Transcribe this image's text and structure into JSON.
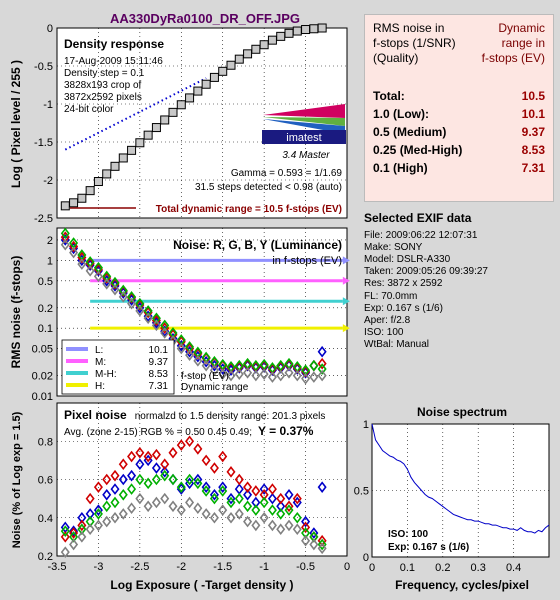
{
  "file_title": "AA330DyRa0100_DR_OFF.JPG",
  "summary": {
    "header_left": [
      "RMS noise in",
      "f-stops (1/SNR)",
      "(Quality)"
    ],
    "header_right": [
      "Dynamic",
      "range in",
      "f-stops (EV)"
    ],
    "rows": [
      {
        "label": "Total:",
        "value": "10.5"
      },
      {
        "label": "1.0   (Low):",
        "value": "10.1"
      },
      {
        "label": "0.5   (Medium)",
        "value": "9.37"
      },
      {
        "label": "0.25 (Med-High)",
        "value": "8.53"
      },
      {
        "label": "0.1   (High)",
        "value": "7.31"
      }
    ]
  },
  "exif": {
    "title": "Selected EXIF data",
    "lines": [
      "File:  2009:06:22 12:07:31",
      "Make:  SONY",
      "Model: DSLR-A330",
      "Taken:  2009:05:26 09:39:27",
      "Res:   3872 x 2592",
      "FL:  70.0mm",
      "Exp:   0.167 s   (1/6)",
      "Aper:  f/2.8",
      "ISO:   100",
      "WtBal: Manual"
    ]
  },
  "logo": {
    "name": "imatest",
    "edition": "3.4  Master"
  },
  "chart_data": [
    {
      "type": "scatter",
      "title": "Density response",
      "info_lines": [
        "17-Aug-2009 15:11:46",
        "Density step = 0.1",
        "3828x193 crop of",
        "3872x2592 pixels",
        "24-bit color"
      ],
      "gamma_text": "Gamma = 0.593 = 1/1.69",
      "steps_text": "31.5 steps detected < 0.98 (auto)",
      "total_text": "Total dynamic range = 10.5 f-stops (EV)",
      "ylabel": "Log ( Pixel level / 255 )",
      "xlim": [
        -3.5,
        0
      ],
      "ylim": [
        -2.5,
        0
      ],
      "yticks": [
        0,
        -0.5,
        -1,
        -1.5,
        -2,
        -2.5
      ],
      "x": [
        -3.4,
        -3.3,
        -3.2,
        -3.1,
        -3.0,
        -2.9,
        -2.8,
        -2.7,
        -2.6,
        -2.5,
        -2.4,
        -2.3,
        -2.2,
        -2.1,
        -2.0,
        -1.9,
        -1.8,
        -1.7,
        -1.6,
        -1.5,
        -1.4,
        -1.3,
        -1.2,
        -1.1,
        -1.0,
        -0.9,
        -0.8,
        -0.7,
        -0.6,
        -0.5,
        -0.4,
        -0.3
      ],
      "y": [
        -2.34,
        -2.3,
        -2.24,
        -2.14,
        -2.02,
        -1.92,
        -1.82,
        -1.71,
        -1.61,
        -1.51,
        -1.41,
        -1.31,
        -1.21,
        -1.11,
        -1.01,
        -0.92,
        -0.83,
        -0.74,
        -0.65,
        -0.57,
        -0.49,
        -0.41,
        -0.34,
        -0.28,
        -0.22,
        -0.16,
        -0.11,
        -0.07,
        -0.04,
        -0.02,
        -0.01,
        0
      ],
      "fit_line": {
        "x": [
          -3.4,
          -1.7
        ],
        "y": [
          -1.6,
          -0.66
        ]
      }
    },
    {
      "type": "scatter",
      "title": "Noise: R, G, B, Y (Luminance)",
      "subtitle": "in f-stops (EV)",
      "ylabel": "RMS noise (f-stops)",
      "yscale": "log",
      "xlim": [
        -3.5,
        0
      ],
      "ylim": [
        0.01,
        3
      ],
      "yticks": [
        2,
        1,
        0.5,
        0.2,
        0.1,
        0.05,
        0.02,
        0.01
      ],
      "ytick_labels": [
        "2",
        "1",
        "0.5",
        "0.2",
        "0.1",
        "0.05",
        "0.02",
        "0.01"
      ],
      "ref_lines": [
        {
          "name": "L:",
          "value": 1.0,
          "dr": "10.1",
          "color": "#9090ff"
        },
        {
          "name": "M:",
          "value": 0.5,
          "dr": "9.37",
          "color": "#ff60ff"
        },
        {
          "name": "M-H:",
          "value": 0.25,
          "dr": "8.53",
          "color": "#40d0d0"
        },
        {
          "name": "H:",
          "value": 0.1,
          "dr": "7.31",
          "color": "#f0f000"
        }
      ],
      "annotations": [
        "f-stop (EV)",
        "Dynamic range"
      ],
      "x": [
        -3.4,
        -3.3,
        -3.2,
        -3.1,
        -3.0,
        -2.9,
        -2.8,
        -2.7,
        -2.6,
        -2.5,
        -2.4,
        -2.3,
        -2.2,
        -2.1,
        -2.0,
        -1.9,
        -1.8,
        -1.7,
        -1.6,
        -1.5,
        -1.4,
        -1.3,
        -1.2,
        -1.1,
        -1.0,
        -0.9,
        -0.8,
        -0.7,
        -0.6,
        -0.5,
        -0.4,
        -0.3
      ],
      "series": [
        {
          "color": "#0000c8",
          "values": [
            2.0,
            1.5,
            1.0,
            0.85,
            0.7,
            0.5,
            0.42,
            0.33,
            0.26,
            0.2,
            0.15,
            0.12,
            0.09,
            0.07,
            0.055,
            0.045,
            0.038,
            0.032,
            0.028,
            0.025,
            0.024,
            0.026,
            0.028,
            0.026,
            0.027,
            0.024,
            0.026,
            0.028,
            0.025,
            0.022,
            0.028,
            0.045
          ]
        },
        {
          "color": "#d00000",
          "values": [
            2.2,
            1.6,
            1.1,
            0.9,
            0.74,
            0.55,
            0.45,
            0.35,
            0.28,
            0.22,
            0.17,
            0.13,
            0.1,
            0.08,
            0.063,
            0.05,
            0.042,
            0.036,
            0.031,
            0.028,
            0.026,
            0.027,
            0.029,
            0.027,
            0.028,
            0.025,
            0.027,
            0.029,
            0.026,
            0.023,
            0.028,
            0.03
          ]
        },
        {
          "color": "#00b000",
          "values": [
            2.5,
            1.8,
            1.2,
            0.95,
            0.78,
            0.58,
            0.47,
            0.36,
            0.29,
            0.23,
            0.18,
            0.14,
            0.11,
            0.085,
            0.067,
            0.053,
            0.044,
            0.037,
            0.032,
            0.029,
            0.027,
            0.028,
            0.03,
            0.028,
            0.029,
            0.026,
            0.028,
            0.03,
            0.027,
            0.024,
            0.028,
            0.025
          ]
        },
        {
          "color": "#808080",
          "values": [
            1.7,
            1.3,
            0.88,
            0.7,
            0.58,
            0.45,
            0.37,
            0.29,
            0.23,
            0.18,
            0.14,
            0.11,
            0.085,
            0.065,
            0.05,
            0.04,
            0.033,
            0.028,
            0.024,
            0.021,
            0.02,
            0.021,
            0.022,
            0.02,
            0.021,
            0.019,
            0.02,
            0.022,
            0.02,
            0.018,
            0.019,
            0.02
          ]
        }
      ]
    },
    {
      "type": "scatter",
      "title": "Pixel noise",
      "title_suffix": "normalzd to 1.5 density range: 201.3 pixels",
      "avg_text": "Avg. (zone 2-15) RGB % = 0.50  0.45  0.49;",
      "y_text": "Y = 0.37%",
      "xlabel": "Log Exposure ( -Target density )",
      "ylabel": "Noise (% of Log exp = 1.5)",
      "xlim": [
        -3.5,
        0
      ],
      "ylim": [
        0.2,
        1.0
      ],
      "xticks": [
        -3.5,
        -3,
        -2.5,
        -2,
        -1.5,
        -1,
        -0.5,
        0
      ],
      "yticks": [
        0.2,
        0.4,
        0.6,
        0.8
      ],
      "x": [
        -3.4,
        -3.3,
        -3.2,
        -3.1,
        -3.0,
        -2.9,
        -2.8,
        -2.7,
        -2.6,
        -2.5,
        -2.4,
        -2.3,
        -2.2,
        -2.1,
        -2.0,
        -1.9,
        -1.8,
        -1.7,
        -1.6,
        -1.5,
        -1.4,
        -1.3,
        -1.2,
        -1.1,
        -1.0,
        -0.9,
        -0.8,
        -0.7,
        -0.6,
        -0.5,
        -0.4,
        -0.3
      ],
      "series": [
        {
          "color": "#0000c8",
          "values": [
            0.35,
            0.33,
            0.4,
            0.42,
            0.44,
            0.52,
            0.55,
            0.6,
            0.62,
            0.68,
            0.7,
            0.66,
            0.64,
            0.6,
            0.55,
            0.58,
            0.6,
            0.56,
            0.52,
            0.56,
            0.5,
            0.55,
            0.52,
            0.48,
            0.55,
            0.5,
            0.46,
            0.52,
            0.48,
            0.38,
            0.32,
            0.56
          ]
        },
        {
          "color": "#d00000",
          "values": [
            0.3,
            0.32,
            0.36,
            0.5,
            0.56,
            0.6,
            0.62,
            0.68,
            0.72,
            0.74,
            0.72,
            0.73,
            0.68,
            0.74,
            0.78,
            0.8,
            0.76,
            0.7,
            0.66,
            0.72,
            0.64,
            0.6,
            0.56,
            0.54,
            0.52,
            0.55,
            0.5,
            0.46,
            0.5,
            0.35,
            0.3,
            0.28
          ]
        },
        {
          "color": "#00b000",
          "values": [
            0.33,
            0.3,
            0.34,
            0.38,
            0.42,
            0.46,
            0.48,
            0.52,
            0.55,
            0.6,
            0.58,
            0.6,
            0.62,
            0.6,
            0.56,
            0.6,
            0.58,
            0.54,
            0.5,
            0.54,
            0.48,
            0.5,
            0.46,
            0.44,
            0.48,
            0.44,
            0.42,
            0.44,
            0.4,
            0.32,
            0.3,
            0.26
          ]
        },
        {
          "color": "#808080",
          "values": [
            0.22,
            0.26,
            0.3,
            0.34,
            0.36,
            0.38,
            0.4,
            0.42,
            0.45,
            0.5,
            0.46,
            0.48,
            0.5,
            0.46,
            0.44,
            0.48,
            0.45,
            0.42,
            0.4,
            0.44,
            0.4,
            0.42,
            0.38,
            0.36,
            0.4,
            0.36,
            0.34,
            0.36,
            0.34,
            0.28,
            0.26,
            0.24
          ]
        }
      ]
    },
    {
      "type": "line",
      "title": "Noise spectrum",
      "xlabel": "Frequency, cycles/pixel",
      "iso_text": "ISO:    100",
      "exp_text": "Exp:   0.167 s   (1/6)",
      "xlim": [
        0,
        0.5
      ],
      "ylim": [
        0,
        1
      ],
      "xticks": [
        0,
        0.1,
        0.2,
        0.3,
        0.4
      ],
      "yticks": [
        0,
        0.5,
        1
      ],
      "ytick_labels": [
        "0",
        "0.5",
        "1"
      ],
      "x": [
        0,
        0.01,
        0.02,
        0.03,
        0.04,
        0.05,
        0.06,
        0.07,
        0.08,
        0.09,
        0.1,
        0.11,
        0.12,
        0.13,
        0.14,
        0.15,
        0.16,
        0.17,
        0.18,
        0.19,
        0.2,
        0.21,
        0.22,
        0.23,
        0.24,
        0.25,
        0.26,
        0.27,
        0.28,
        0.29,
        0.3,
        0.31,
        0.32,
        0.33,
        0.34,
        0.35,
        0.36,
        0.37,
        0.38,
        0.39,
        0.4,
        0.41,
        0.42,
        0.43,
        0.44,
        0.45,
        0.46,
        0.47,
        0.48,
        0.49,
        0.5
      ],
      "y": [
        1.0,
        0.88,
        0.84,
        0.8,
        0.78,
        0.76,
        0.75,
        0.73,
        0.72,
        0.7,
        0.66,
        0.6,
        0.56,
        0.53,
        0.5,
        0.47,
        0.45,
        0.44,
        0.42,
        0.4,
        0.38,
        0.36,
        0.34,
        0.32,
        0.31,
        0.3,
        0.29,
        0.28,
        0.28,
        0.27,
        0.27,
        0.26,
        0.25,
        0.25,
        0.24,
        0.24,
        0.23,
        0.22,
        0.22,
        0.21,
        0.21,
        0.2,
        0.22,
        0.2,
        0.19,
        0.19,
        0.18,
        0.2,
        0.19,
        0.22,
        0.24
      ]
    }
  ]
}
